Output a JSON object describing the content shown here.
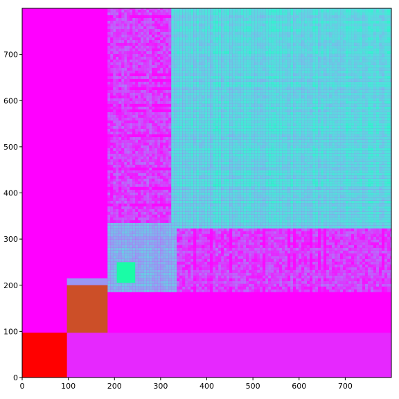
{
  "chart_data": {
    "type": "heatmap",
    "title": "",
    "xlabel": "",
    "ylabel": "",
    "colormap": "rainbow",
    "xlim": [
      0,
      800
    ],
    "ylim": [
      0,
      800
    ],
    "origin": "lower",
    "grid": false,
    "x_ticks": [
      "0",
      "100",
      "200",
      "300",
      "400",
      "500",
      "600",
      "700"
    ],
    "y_ticks": [
      "0",
      "100",
      "200",
      "300",
      "400",
      "500",
      "600",
      "700"
    ],
    "x_tick_values": [
      0,
      100,
      200,
      300,
      400,
      500,
      600,
      700
    ],
    "y_tick_values": [
      0,
      100,
      200,
      300,
      400,
      500,
      600,
      700
    ],
    "blocks": [
      {
        "x": [
          0,
          800
        ],
        "y": [
          0,
          800
        ],
        "value": 0.0
      },
      {
        "x": [
          0,
          97
        ],
        "y": [
          0,
          97
        ],
        "value": 1.0
      },
      {
        "x": [
          97,
          185
        ],
        "y": [
          97,
          200
        ],
        "value": 0.9
      },
      {
        "x": [
          97,
          800
        ],
        "y": [
          0,
          97
        ],
        "value": 0.05
      },
      {
        "x": [
          0,
          97
        ],
        "y": [
          97,
          800
        ],
        "value": 0.0
      },
      {
        "x": [
          97,
          185
        ],
        "y": [
          200,
          800
        ],
        "value": 0.0
      },
      {
        "x": [
          185,
          800
        ],
        "y": [
          97,
          185
        ],
        "value": 0.0
      },
      {
        "x": [
          97,
          185
        ],
        "y": [
          200,
          215
        ],
        "value": 0.2
      },
      {
        "x": [
          185,
          325
        ],
        "y": [
          185,
          330
        ],
        "value": 0.15
      },
      {
        "x": [
          205,
          245
        ],
        "y": [
          205,
          250
        ],
        "value": 0.55
      },
      {
        "x": [
          235,
          330
        ],
        "y": [
          215,
          320
        ],
        "value": 0.25
      },
      {
        "x": [
          300,
          800
        ],
        "y": [
          320,
          800
        ],
        "value": 0.25
      }
    ],
    "noise_region": {
      "x": [
        185,
        800
      ],
      "y": [
        185,
        800
      ],
      "value_range": [
        0.0,
        0.5
      ]
    }
  }
}
